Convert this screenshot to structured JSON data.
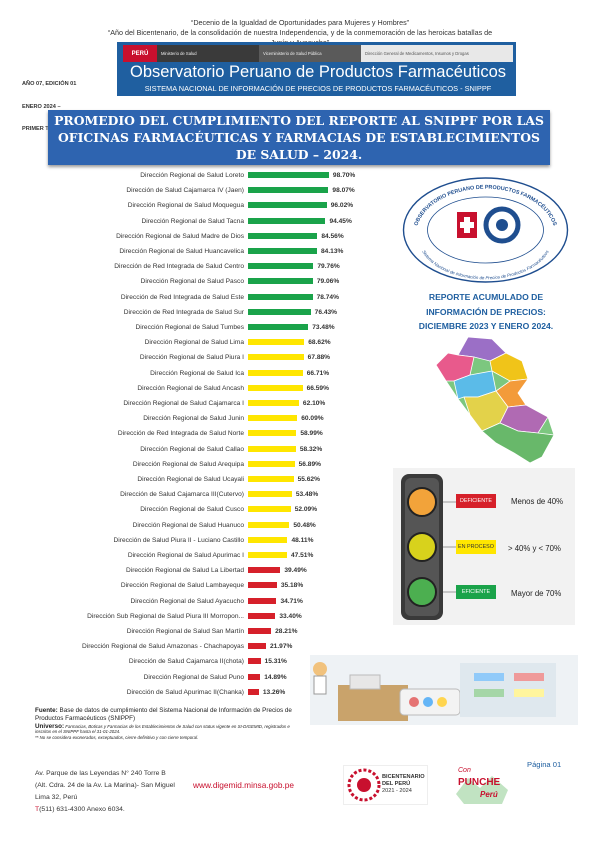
{
  "header": {
    "decenio": "“Decenio de la Igualdad de Oportunidades para Mujeres y Hombres”",
    "anio": "“Año del Bicentenario, de la consolidación de nuestra Independencia, y de la conmemoración de las heroicas batallas de Junín y Ayacucho”",
    "edition_lines": [
      "AÑO 07, EDICIÓN 01",
      "ENERO 2024 –",
      "PRIMER TRIMESTRE"
    ],
    "logo_peru": "PERÚ",
    "logo_ministerio": "Ministerio de Salud",
    "logo_viceministerio": "Viceministerio de Salud Pública",
    "logo_digemid": "Dirección General de Medicamentos, Insumos y Drogas",
    "obs_title": "Observatorio Peruano de Productos Farmacéuticos",
    "obs_subtitle": "SISTEMA NACIONAL DE INFORMACIÓN DE PRECIOS DE PRODUCTOS FARMACÉUTICOS - SNIPPF"
  },
  "main_title": "PROMEDIO DEL CUMPLIMIENTO DEL REPORTE AL SNIPPF POR LAS OFICINAS FARMACÉUTICAS Y FARMACIAS DE ESTABLECIMIENTOS DE SALUD – 2024.",
  "chart_data": {
    "type": "bar",
    "orientation": "horizontal",
    "categories": [
      "Dirección Regional de Salud Loreto",
      "Dirección de Salud Cajamarca IV (Jaen)",
      "Dirección Regional de Salud Moquegua",
      "Dirección Regional de Salud Tacna",
      "Dirección Regional de Salud Madre de Dios",
      "Dirección Regional de Salud Huancavelica",
      "Dirección de Red Integrada de Salud Centro",
      "Dirección Regional de Salud Pasco",
      "Dirección de Red Integrada de Salud Este",
      "Dirección de Red Integrada de Salud Sur",
      "Dirección Regional de Salud Tumbes",
      "Dirección Regional de Salud Lima",
      "Dirección Regional de Salud Piura I",
      "Dirección Regional de Salud Ica",
      "Dirección Regional de Salud Ancash",
      "Dirección Regional de Salud Cajamarca I",
      "Dirección Regional de Salud Junin",
      "Dirección de Red Integrada de Salud Norte",
      "Dirección Regional de Salud Callao",
      "Dirección Regional de Salud Arequipa",
      "Dirección Regional de Salud Ucayali",
      "Dirección de Salud Cajamarca III(Cutervo)",
      "Dirección Regional de Salud Cusco",
      "Dirección Regional de Salud Huanuco",
      "Dirección de Salud Piura II - Luciano Castillo",
      "Dirección Regional de Salud Apurimac I",
      "Dirección Regional de Salud La Libertad",
      "Dirección Regional de Salud Lambayeque",
      "Dirección Regional de Salud Ayacucho",
      "Dirección Sub Regional de Salud Piura III Morropon...",
      "Dirección Regional de Salud San Martín",
      "Dirección Regional de Salud Amazonas - Chachapoyas",
      "Dirección de Salud Cajamarca II(chota)",
      "Dirección Regional de Salud Puno",
      "Dirección de Salud Apurimac II(Chanka)"
    ],
    "values": [
      98.7,
      98.07,
      96.02,
      94.45,
      84.56,
      84.13,
      79.76,
      79.06,
      78.74,
      76.43,
      73.48,
      68.62,
      67.88,
      66.71,
      66.59,
      62.1,
      60.09,
      58.99,
      58.32,
      56.89,
      55.62,
      53.48,
      52.09,
      50.48,
      48.11,
      47.51,
      39.49,
      35.18,
      34.71,
      33.4,
      28.21,
      21.97,
      15.31,
      14.89,
      13.26
    ],
    "value_labels": [
      "98.70%",
      "98.07%",
      "96.02%",
      "94.45%",
      "84.56%",
      "84.13%",
      "79.76%",
      "79.06%",
      "78.74%",
      "76.43%",
      "73.48%",
      "68.62%",
      "67.88%",
      "66.71%",
      "66.59%",
      "62.10%",
      "60.09%",
      "58.99%",
      "58.32%",
      "56.89%",
      "55.62%",
      "53.48%",
      "52.09%",
      "50.48%",
      "48.11%",
      "47.51%",
      "39.49%",
      "35.18%",
      "34.71%",
      "33.40%",
      "28.21%",
      "21.97%",
      "15.31%",
      "14.89%",
      "13.26%"
    ],
    "xlim": [
      0,
      100
    ],
    "grid": false,
    "colors": {
      "green": "#1aa34a",
      "yellow": "#ffe600",
      "red": "#d6202a"
    }
  },
  "seal": {
    "arc_top": "OBSERVATORIO PERUANO DE PRODUCTOS FARMACÉUTICOS",
    "arc_bottom": "Sistema Nacional de Información de Precios de Productos Farmacéuticos"
  },
  "reporte": {
    "lines": [
      "REPORTE ACUMULADO DE",
      "INFORMACIÓN DE PRECIOS:",
      "DICIEMBRE 2023 Y ENERO 2024."
    ]
  },
  "legend": {
    "items": [
      {
        "tag": "DEFICIENTE",
        "desc": "Menos de 40%",
        "color": "#d6202a"
      },
      {
        "tag": "EN PROCESO",
        "desc": "> 40% y < 70%",
        "color": "#ffe600"
      },
      {
        "tag": "EFICIENTE",
        "desc": "Mayor de 70%",
        "color": "#1aa34a"
      }
    ]
  },
  "fuente": {
    "label": "Fuente:",
    "text": "Base de datos de cumplimiento del Sistema Nacional de Información de Precios de Productos Farmacéuticos (SNIPPF)",
    "universo_label": "Universo:",
    "universo_text": "Farmacias, Boticas y Farmacias de los Establecimientos de Salud con status vigente en SI-DIGEMID, registrados e inscritos en el SNIPPF hasta el 31-01-2024.",
    "note": "** No se considera exonerados, exceptuados, cierre definitivo y con cierre temporal."
  },
  "footer": {
    "address_lines": [
      "Av. Parque de las Leyendas N° 240 Torre B",
      "(Alt. Cdra. 24 de la Av. La Marina)- San Miguel",
      "Lima 32, Perú"
    ],
    "phone_prefix": "T",
    "phone": "(511) 631-4300  Anexo 6034.",
    "website": "www.digemid.minsa.gob.pe",
    "page": "Página 01",
    "bicentenario_title": "BICENTENARIO",
    "bicentenario_sub": "DEL PERÚ",
    "bicentenario_years": "2021 - 2024",
    "punche_con": "Con",
    "punche_word": "PUNCHE",
    "punche_peru": "Perú"
  }
}
